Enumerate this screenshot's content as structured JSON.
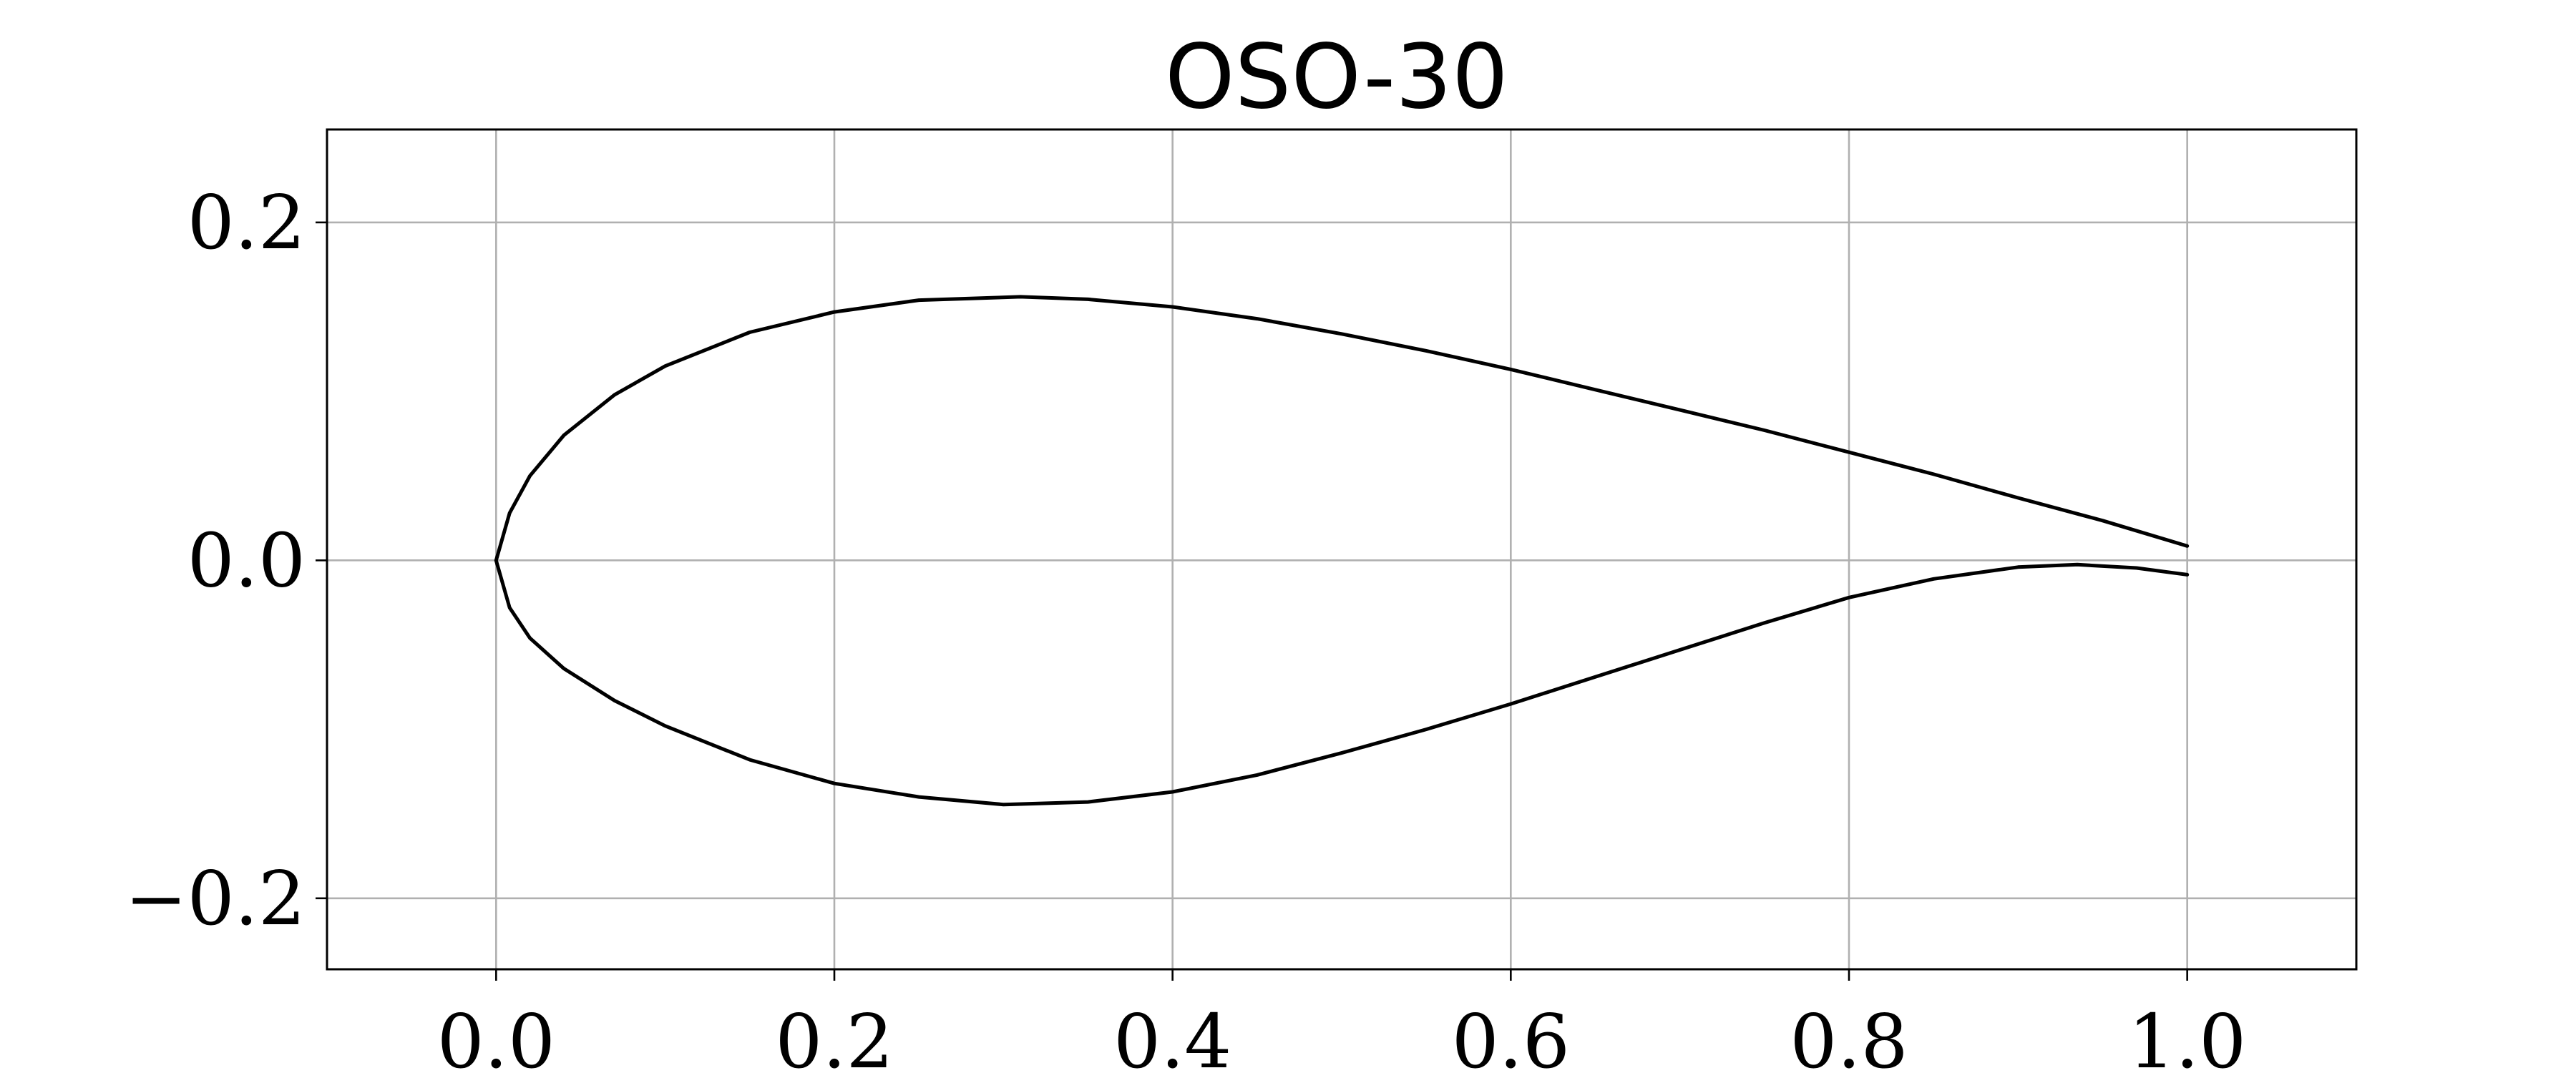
{
  "chart_data": {
    "type": "line",
    "title": "OSO-30",
    "xlabel": "",
    "ylabel": "",
    "xlim": [
      -0.1,
      1.1
    ],
    "ylim": [
      -0.242,
      0.255
    ],
    "x_ticks": [
      "0.0",
      "0.2",
      "0.4",
      "0.6",
      "0.8",
      "1.0"
    ],
    "y_ticks": [
      "−0.2",
      "0.0",
      "0.2"
    ],
    "grid": true,
    "line_color": "#000000",
    "grid_color": "#b0b0b0",
    "series": [
      {
        "points": [
          [
            1.0,
            0.0085
          ],
          [
            0.95,
            0.0235
          ],
          [
            0.9,
            0.037
          ],
          [
            0.85,
            0.051
          ],
          [
            0.8,
            0.064
          ],
          [
            0.75,
            0.077
          ],
          [
            0.7,
            0.089
          ],
          [
            0.65,
            0.101
          ],
          [
            0.6,
            0.113
          ],
          [
            0.55,
            0.124
          ],
          [
            0.5,
            0.134
          ],
          [
            0.45,
            0.143
          ],
          [
            0.4,
            0.15
          ],
          [
            0.35,
            0.1545
          ],
          [
            0.31,
            0.156
          ],
          [
            0.25,
            0.154
          ],
          [
            0.2,
            0.147
          ],
          [
            0.15,
            0.135
          ],
          [
            0.1,
            0.115
          ],
          [
            0.07,
            0.098
          ],
          [
            0.04,
            0.074
          ],
          [
            0.02,
            0.05
          ],
          [
            0.008,
            0.028
          ],
          [
            0.0,
            0.0
          ],
          [
            0.008,
            -0.028
          ],
          [
            0.02,
            -0.046
          ],
          [
            0.04,
            -0.064
          ],
          [
            0.07,
            -0.083
          ],
          [
            0.1,
            -0.098
          ],
          [
            0.15,
            -0.118
          ],
          [
            0.2,
            -0.132
          ],
          [
            0.25,
            -0.14
          ],
          [
            0.3,
            -0.1445
          ],
          [
            0.35,
            -0.143
          ],
          [
            0.4,
            -0.137
          ],
          [
            0.45,
            -0.127
          ],
          [
            0.5,
            -0.114
          ],
          [
            0.55,
            -0.1
          ],
          [
            0.6,
            -0.085
          ],
          [
            0.65,
            -0.069
          ],
          [
            0.7,
            -0.053
          ],
          [
            0.75,
            -0.037
          ],
          [
            0.8,
            -0.022
          ],
          [
            0.85,
            -0.011
          ],
          [
            0.9,
            -0.004
          ],
          [
            0.935,
            -0.0025
          ],
          [
            0.97,
            -0.0045
          ],
          [
            1.0,
            -0.0085
          ]
        ]
      }
    ]
  }
}
